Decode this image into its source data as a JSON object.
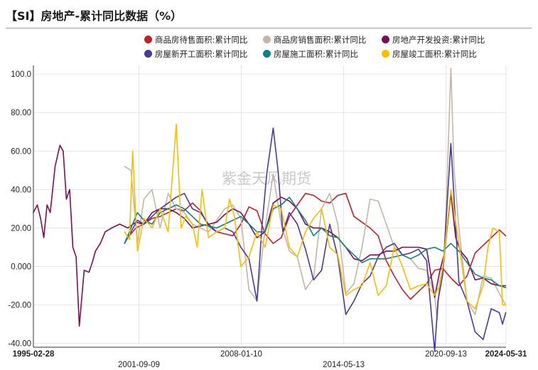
{
  "title": "【SI】房地产-累计同比数据（%）",
  "watermark": "紫金天风期货",
  "colors": {
    "daishou": "#c0202a",
    "xiaoshou": "#c4b6a6",
    "touzi": "#7a0f55",
    "xinkai": "#4b3a96",
    "shigong": "#118080",
    "jungong": "#f5c000"
  },
  "chart_data": {
    "type": "line",
    "title": "【SI】房地产-累计同比数据（%）",
    "ylim": [
      -40,
      105
    ],
    "yticks": [
      100,
      80,
      60,
      40,
      20,
      0,
      -20,
      -40
    ],
    "ytick_labels": [
      "100.0",
      "80.00",
      "60.00",
      "40.00",
      "20.00",
      "0.000",
      "-20.00",
      "-40.00"
    ],
    "xlim": [
      "1995-02-28",
      "2024-05-31"
    ],
    "xticks": [
      {
        "date": "1995-02-28",
        "label": "1995-02-28",
        "bold": true,
        "row": 1
      },
      {
        "date": "2001-09-09",
        "label": "2001-09-09",
        "bold": false,
        "row": 2
      },
      {
        "date": "2008-01-10",
        "label": "2008-01-10",
        "bold": false,
        "row": 1
      },
      {
        "date": "2014-05-13",
        "label": "2014-05-13",
        "bold": false,
        "row": 2
      },
      {
        "date": "2020-09-13",
        "label": "2020-09-13",
        "bold": false,
        "row": 1
      },
      {
        "date": "2024-05-31",
        "label": "2024-05-31",
        "bold": true,
        "row": 1
      }
    ],
    "grid": true,
    "legend_position": "top",
    "series": [
      {
        "key": "daishou",
        "name": "商品房待售面积:累计同比",
        "x": [
          2000.9,
          2001.5,
          2002.0,
          2002.5,
          2003.0,
          2003.5,
          2004.0,
          2004.5,
          2005.0,
          2005.5,
          2006.0,
          2006.5,
          2007.0,
          2007.5,
          2008.0,
          2008.5,
          2009.0,
          2009.5,
          2010.0,
          2010.5,
          2011.0,
          2011.5,
          2012.0,
          2012.5,
          2013.0,
          2013.5,
          2014.0,
          2014.5,
          2015.0,
          2015.5,
          2016.0,
          2016.5,
          2017.0,
          2017.5,
          2018.0,
          2018.5,
          2019.0,
          2019.5,
          2020.0,
          2020.5,
          2021.0,
          2021.5,
          2022.0,
          2022.5,
          2023.0,
          2023.5,
          2024.0,
          2024.4
        ],
        "y": [
          14,
          20,
          22,
          25,
          26,
          28,
          30,
          29,
          33,
          29,
          21,
          18,
          17,
          16,
          22,
          31,
          29,
          17,
          12,
          15,
          26,
          32,
          38,
          37,
          34,
          33,
          37,
          38,
          26,
          23,
          20,
          16,
          3,
          -5,
          -12,
          -17,
          -13,
          -9,
          -2,
          -1,
          -6,
          -10,
          -5,
          7,
          11,
          15,
          19,
          16
        ]
      },
      {
        "key": "xiaoshou",
        "name": "商品房销售面积:累计同比",
        "x": [
          2000.8,
          2001.2,
          2001.6,
          2002.0,
          2002.5,
          2003.0,
          2003.5,
          2004.0,
          2004.5,
          2005.0,
          2005.5,
          2006.0,
          2006.5,
          2007.0,
          2007.5,
          2008.0,
          2008.5,
          2009.0,
          2009.5,
          2010.0,
          2010.5,
          2011.0,
          2011.5,
          2012.0,
          2012.5,
          2013.0,
          2013.5,
          2014.0,
          2014.5,
          2015.0,
          2015.5,
          2016.0,
          2016.5,
          2017.0,
          2017.5,
          2018.0,
          2018.5,
          2019.0,
          2019.5,
          2020.0,
          2020.15,
          2020.3,
          2020.6,
          2021.0,
          2021.2,
          2021.5,
          2022.0,
          2022.5,
          2023.0,
          2023.5,
          2024.0,
          2024.4
        ],
        "y": [
          52,
          50,
          12,
          35,
          40,
          20,
          38,
          30,
          28,
          22,
          20,
          18,
          24,
          30,
          32,
          25,
          -12,
          -18,
          20,
          48,
          22,
          8,
          5,
          -12,
          -6,
          30,
          38,
          22,
          -14,
          -9,
          10,
          35,
          34,
          22,
          10,
          6,
          4,
          -1,
          -2,
          -15,
          -28,
          -8,
          3,
          103,
          50,
          20,
          -18,
          -25,
          -5,
          -6,
          -14,
          -20
        ]
      },
      {
        "key": "touzi",
        "name": "房地产开发投资:累计同比",
        "x": [
          1995.15,
          1995.4,
          1995.6,
          1995.8,
          1996.0,
          1996.2,
          1996.5,
          1996.8,
          1997.0,
          1997.2,
          1997.4,
          1997.6,
          1997.8,
          1998.0,
          1998.3,
          1998.6,
          1998.8,
          1999.0,
          1999.3,
          1999.6,
          2000.0,
          2000.5,
          2001.0,
          2001.5,
          2002.0,
          2002.5,
          2003.0,
          2003.5,
          2004.0,
          2004.5,
          2005.0,
          2005.5,
          2006.0,
          2006.5,
          2007.0,
          2007.5,
          2008.0,
          2008.5,
          2009.0,
          2009.5,
          2010.0,
          2010.5,
          2011.0,
          2011.5,
          2012.0,
          2012.5,
          2013.0,
          2013.5,
          2014.0,
          2014.5,
          2015.0,
          2015.5,
          2016.0,
          2016.5,
          2017.0,
          2017.5,
          2018.0,
          2018.5,
          2019.0,
          2019.5,
          2020.0,
          2020.3,
          2020.6,
          2021.0,
          2021.3,
          2021.6,
          2022.0,
          2022.5,
          2023.0,
          2023.5,
          2024.0,
          2024.4
        ],
        "y": [
          28,
          32,
          25,
          15,
          32,
          28,
          52,
          63,
          60,
          35,
          40,
          10,
          5,
          -31,
          -2,
          -3,
          2,
          8,
          12,
          18,
          20,
          22,
          20,
          23,
          22,
          28,
          30,
          30,
          28,
          25,
          20,
          21,
          22,
          23,
          27,
          30,
          28,
          22,
          15,
          18,
          33,
          36,
          34,
          30,
          22,
          20,
          20,
          18,
          15,
          10,
          4,
          3,
          6,
          6,
          8,
          8,
          10,
          10,
          10,
          9,
          -16,
          -3,
          7,
          38,
          15,
          8,
          4,
          -7,
          -6,
          -9,
          -10,
          -10
        ]
      },
      {
        "key": "xinkai",
        "name": "房屋新开工面积:累计同比",
        "x": [
          2000.8,
          2001.2,
          2001.6,
          2002.0,
          2002.5,
          2003.0,
          2003.5,
          2004.0,
          2004.5,
          2005.0,
          2005.5,
          2006.0,
          2006.5,
          2007.0,
          2007.5,
          2008.0,
          2008.5,
          2009.0,
          2009.3,
          2009.6,
          2010.0,
          2010.3,
          2010.6,
          2011.0,
          2011.5,
          2012.0,
          2012.5,
          2013.0,
          2013.5,
          2014.0,
          2014.5,
          2015.0,
          2015.5,
          2016.0,
          2016.5,
          2017.0,
          2017.5,
          2018.0,
          2018.5,
          2019.0,
          2019.5,
          2020.0,
          2020.2,
          2020.5,
          2021.0,
          2021.1,
          2021.5,
          2022.0,
          2022.5,
          2023.0,
          2023.5,
          2024.0,
          2024.2,
          2024.4
        ],
        "y": [
          12,
          18,
          24,
          22,
          26,
          30,
          33,
          36,
          38,
          30,
          28,
          22,
          18,
          20,
          18,
          10,
          4,
          -18,
          20,
          48,
          72,
          50,
          18,
          28,
          22,
          9,
          -7,
          -2,
          22,
          5,
          -25,
          -18,
          -9,
          -5,
          5,
          10,
          12,
          6,
          7,
          9,
          3,
          -44,
          -18,
          -4,
          64,
          50,
          -8,
          -18,
          -34,
          -38,
          -22,
          -24,
          -30,
          -24
        ]
      },
      {
        "key": "shigong",
        "name": "房屋施工面积:累计同比",
        "x": [
          2000.8,
          2001.2,
          2001.6,
          2002.0,
          2002.5,
          2003.0,
          2003.5,
          2004.0,
          2004.5,
          2005.0,
          2005.5,
          2006.0,
          2006.5,
          2007.0,
          2007.5,
          2008.0,
          2008.5,
          2009.0,
          2009.5,
          2010.0,
          2010.5,
          2011.0,
          2011.5,
          2012.0,
          2012.5,
          2013.0,
          2013.5,
          2014.0,
          2014.5,
          2015.0,
          2015.5,
          2016.0,
          2016.5,
          2017.0,
          2017.5,
          2018.0,
          2018.5,
          2019.0,
          2019.5,
          2020.0,
          2020.5,
          2021.0,
          2021.5,
          2022.0,
          2022.5,
          2023.0,
          2023.5,
          2024.0,
          2024.4
        ],
        "y": [
          12,
          20,
          28,
          24,
          22,
          28,
          30,
          32,
          30,
          26,
          22,
          21,
          20,
          22,
          24,
          26,
          22,
          18,
          18,
          30,
          32,
          36,
          30,
          24,
          16,
          20,
          16,
          15,
          10,
          6,
          2,
          4,
          4,
          4,
          5,
          6,
          4,
          6,
          9,
          10,
          8,
          12,
          8,
          2,
          -4,
          -6,
          -7,
          -10,
          -11
        ]
      },
      {
        "key": "jungong",
        "name": "房屋竣工面积:累计同比",
        "x": [
          2000.8,
          2001.1,
          2001.3,
          2001.6,
          2002.0,
          2002.5,
          2003.0,
          2003.5,
          2004.0,
          2004.3,
          2004.6,
          2005.0,
          2005.3,
          2005.6,
          2006.0,
          2006.5,
          2007.0,
          2007.3,
          2007.6,
          2008.0,
          2008.5,
          2009.0,
          2009.5,
          2010.0,
          2010.5,
          2011.0,
          2011.5,
          2012.0,
          2012.5,
          2013.0,
          2013.5,
          2014.0,
          2014.5,
          2015.0,
          2015.5,
          2016.0,
          2016.5,
          2017.0,
          2017.5,
          2018.0,
          2018.5,
          2019.0,
          2019.5,
          2020.0,
          2020.3,
          2020.5,
          2021.0,
          2021.5,
          2022.0,
          2022.5,
          2023.0,
          2023.3,
          2023.6,
          2024.0,
          2024.2,
          2024.4
        ],
        "y": [
          18,
          14,
          60,
          8,
          25,
          20,
          30,
          18,
          74,
          20,
          26,
          22,
          10,
          40,
          15,
          18,
          20,
          35,
          26,
          0,
          5,
          18,
          10,
          32,
          30,
          10,
          5,
          18,
          25,
          30,
          10,
          6,
          -15,
          -12,
          -10,
          2,
          -15,
          -10,
          10,
          0,
          -12,
          -10,
          -9,
          -15,
          -10,
          0,
          40,
          12,
          -18,
          -22,
          -10,
          10,
          20,
          18,
          -20,
          -20
        ]
      }
    ]
  }
}
